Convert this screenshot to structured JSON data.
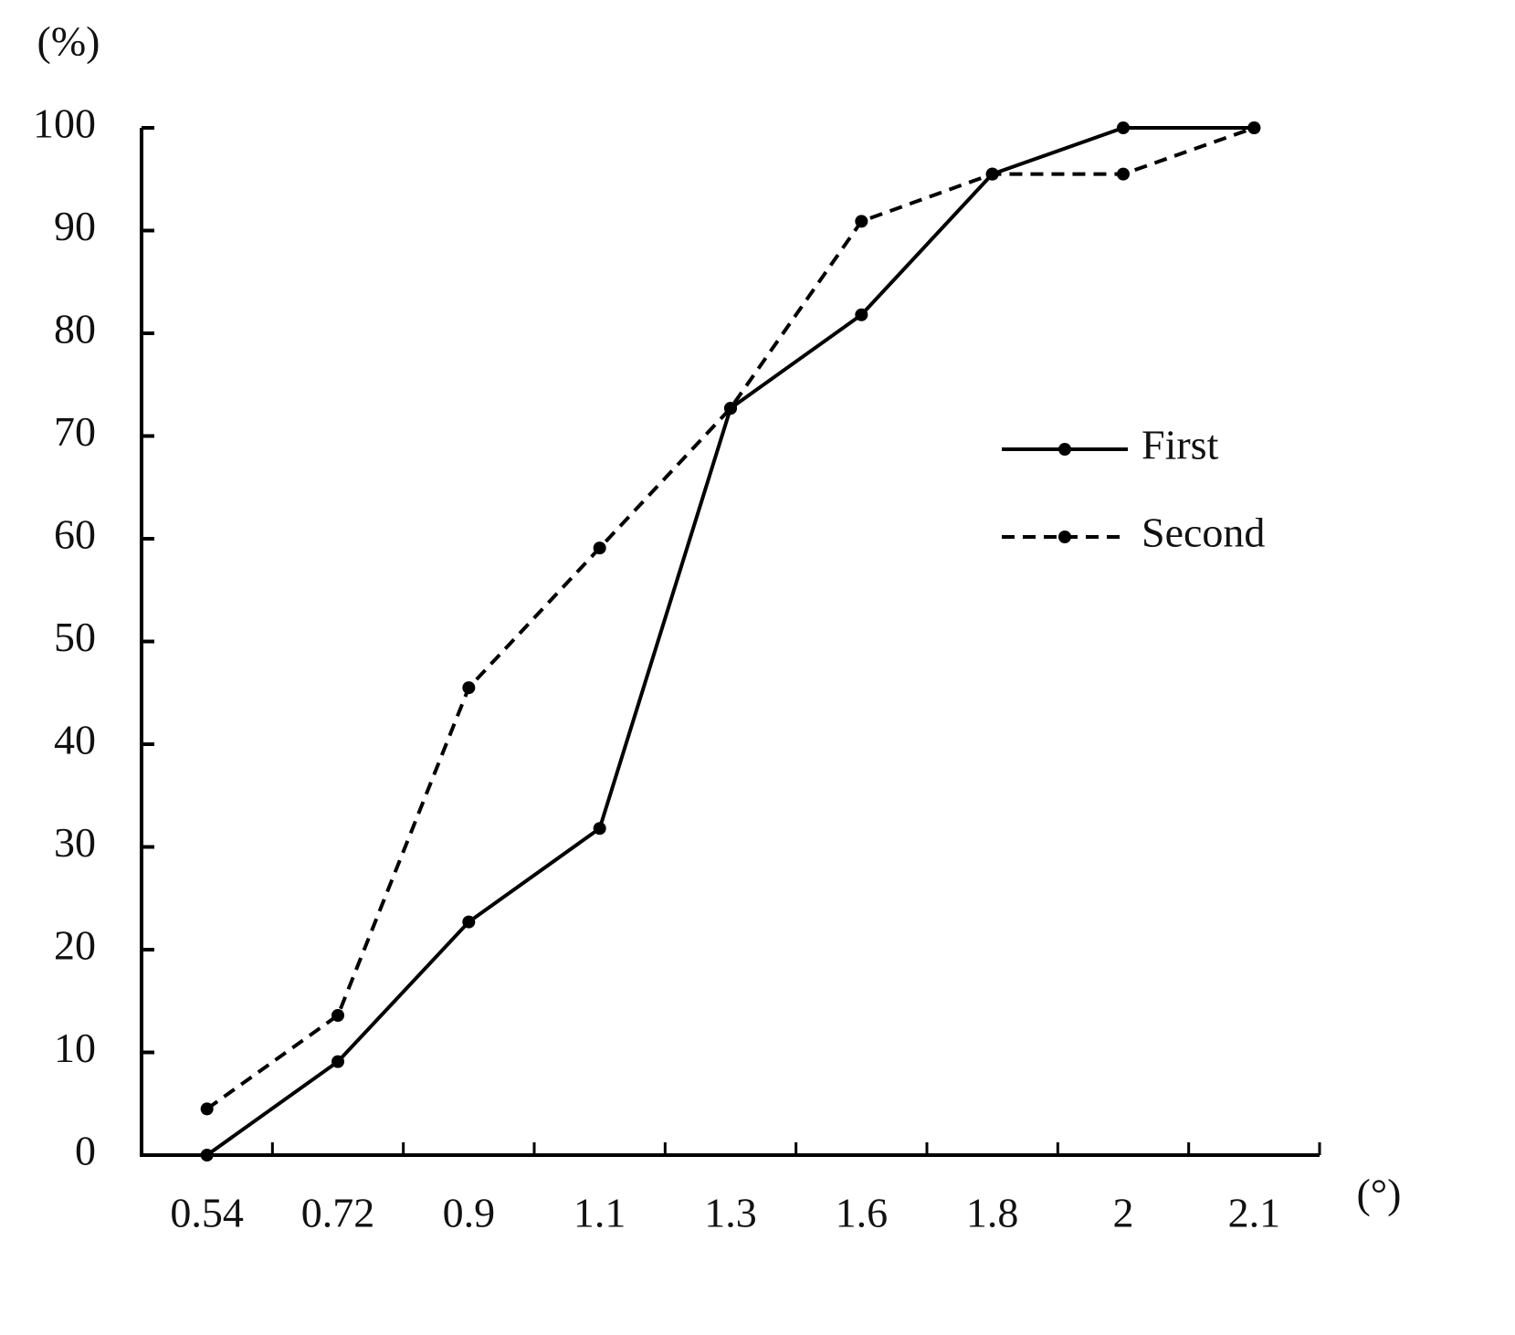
{
  "chart_data": {
    "type": "line",
    "y_label": "(%)",
    "x_label": "(°)",
    "categories": [
      "0.54",
      "0.72",
      "0.9",
      "1.1",
      "1.3",
      "1.6",
      "1.8",
      "2",
      "2.1"
    ],
    "series": [
      {
        "name": "First",
        "color": "#000000",
        "line_style": "solid",
        "values": [
          0,
          9.1,
          22.7,
          31.8,
          72.7,
          81.8,
          95.5,
          100,
          100
        ]
      },
      {
        "name": "Second",
        "color": "#000000",
        "line_style": "dashed",
        "values": [
          4.5,
          13.6,
          45.5,
          59.1,
          72.7,
          90.9,
          95.5,
          95.5,
          100
        ]
      }
    ],
    "ylim": [
      0,
      100
    ],
    "yticks": [
      0,
      10,
      20,
      30,
      40,
      50,
      60,
      70,
      80,
      90,
      100
    ],
    "grid": false,
    "legend": "right"
  }
}
